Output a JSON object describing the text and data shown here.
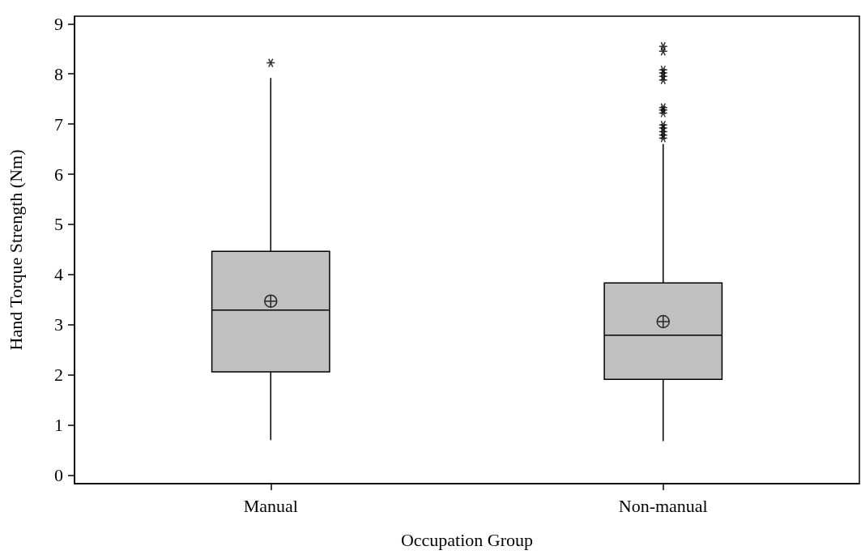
{
  "chart_data": {
    "type": "box",
    "xlabel": "Occupation Group",
    "ylabel": "Hand Torque Strength (Nm)",
    "categories": [
      "Manual",
      "Non-manual"
    ],
    "color": "#c0c0c0",
    "boxes": [
      {
        "low": 0.7,
        "q1": 2.06,
        "median": 3.29,
        "q3": 4.46,
        "high": 7.92,
        "mean": 3.47,
        "outliers": [
          8.22
        ]
      },
      {
        "low": 0.68,
        "q1": 1.91,
        "median": 2.79,
        "q3": 3.83,
        "high": 6.6,
        "mean": 3.06,
        "outliers": [
          6.72,
          6.78,
          6.85,
          6.92,
          6.98,
          7.22,
          7.28,
          7.33,
          7.88,
          7.95,
          8.02,
          8.08,
          8.45,
          8.55
        ]
      }
    ],
    "ylim": [
      -0.17,
      9.15
    ],
    "yticks": [
      0,
      1,
      2,
      3,
      4,
      5,
      6,
      7,
      8,
      9
    ],
    "grid": false
  }
}
